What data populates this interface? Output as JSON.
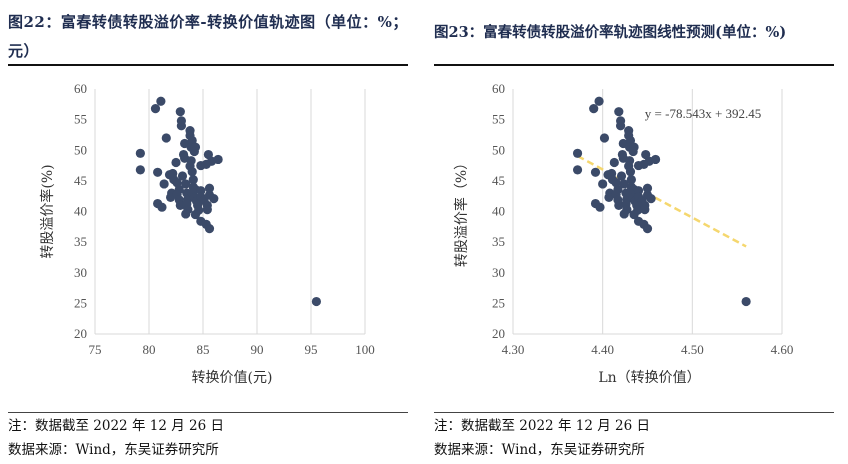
{
  "left": {
    "title": "图22：富春转债转股溢价率-转换价值轨迹图（单位：%；元）",
    "note": "注：数据截至 2022 年 12 月 26 日",
    "source": "数据来源：Wind，东吴证券研究所"
  },
  "right": {
    "title": "图23：富春转债转股溢价率轨迹图线性预测(单位：%)",
    "note": "注：数据截至 2022 年 12 月 26 日",
    "source": "数据来源：Wind，东吴证券研究所"
  },
  "colors": {
    "marker": "#3b4a68",
    "trend": "#f5d76e",
    "title": "#1f2d50"
  },
  "chart_data": [
    {
      "type": "scatter",
      "title": "图22：富春转债转股溢价率-转换价值轨迹图（单位：%；元）",
      "xlabel": "转换价值(元)",
      "ylabel": "转股溢价率(%)",
      "xlim": [
        75,
        100
      ],
      "ylim": [
        20,
        60
      ],
      "xticks": [
        75,
        80,
        85,
        90,
        95,
        100
      ],
      "yticks": [
        20,
        25,
        30,
        35,
        40,
        45,
        50,
        55,
        60
      ],
      "grid": "vertical",
      "points": [
        [
          79.2,
          49.5
        ],
        [
          79.2,
          46.8
        ],
        [
          80.6,
          56.8
        ],
        [
          81.1,
          58.0
        ],
        [
          81.6,
          52.0
        ],
        [
          80.8,
          46.4
        ],
        [
          80.8,
          41.3
        ],
        [
          81.2,
          40.7
        ],
        [
          81.4,
          44.5
        ],
        [
          81.9,
          46.0
        ],
        [
          82.3,
          45.2
        ],
        [
          82.1,
          43.0
        ],
        [
          82.0,
          42.3
        ],
        [
          82.2,
          46.2
        ],
        [
          82.5,
          48.0
        ],
        [
          82.6,
          44.7
        ],
        [
          82.8,
          43.6
        ],
        [
          82.6,
          42.8
        ],
        [
          82.8,
          41.9
        ],
        [
          82.9,
          41.0
        ],
        [
          83.1,
          45.8
        ],
        [
          83.2,
          49.3
        ],
        [
          83.3,
          51.1
        ],
        [
          83.0,
          54.0
        ],
        [
          83.0,
          54.8
        ],
        [
          82.9,
          56.3
        ],
        [
          83.3,
          48.7
        ],
        [
          83.4,
          44.5
        ],
        [
          83.5,
          43.0
        ],
        [
          83.6,
          42.0
        ],
        [
          83.5,
          41.2
        ],
        [
          83.6,
          40.3
        ],
        [
          83.4,
          39.6
        ],
        [
          83.8,
          53.2
        ],
        [
          83.8,
          52.4
        ],
        [
          84.0,
          51.6
        ],
        [
          83.9,
          50.5
        ],
        [
          84.3,
          50.5
        ],
        [
          84.2,
          49.8
        ],
        [
          83.9,
          48.3
        ],
        [
          83.8,
          47.4
        ],
        [
          84.0,
          46.5
        ],
        [
          84.1,
          45.2
        ],
        [
          84.1,
          44.0
        ],
        [
          84.3,
          43.6
        ],
        [
          84.0,
          43.0
        ],
        [
          84.2,
          42.3
        ],
        [
          84.4,
          41.7
        ],
        [
          84.5,
          41.0
        ],
        [
          84.6,
          40.2
        ],
        [
          84.3,
          39.5
        ],
        [
          84.8,
          47.5
        ],
        [
          84.8,
          43.4
        ],
        [
          84.8,
          42.4
        ],
        [
          85.1,
          41.8
        ],
        [
          85.4,
          41.0
        ],
        [
          85.4,
          40.3
        ],
        [
          85.6,
          42.7
        ],
        [
          85.6,
          43.8
        ],
        [
          85.5,
          49.3
        ],
        [
          85.8,
          48.2
        ],
        [
          85.3,
          47.7
        ],
        [
          84.8,
          38.4
        ],
        [
          85.3,
          37.9
        ],
        [
          85.6,
          37.2
        ],
        [
          86.0,
          42.1
        ],
        [
          86.4,
          48.5
        ],
        [
          95.5,
          25.3
        ]
      ]
    },
    {
      "type": "scatter",
      "title": "图23：富春转债转股溢价率轨迹图线性预测(单位：%)",
      "xlabel": "Ln（转换价值）",
      "ylabel": "转股溢价率（%）",
      "xlim": [
        4.3,
        4.6
      ],
      "ylim": [
        20,
        60
      ],
      "xticks": [
        4.3,
        4.4,
        4.5,
        4.6
      ],
      "yticks": [
        20,
        25,
        30,
        35,
        40,
        45,
        50,
        55,
        60
      ],
      "grid": "vertical",
      "trendline": {
        "label": "y = -78.543x + 392.45",
        "slope": -78.543,
        "intercept": 392.45,
        "x_range": [
          4.372,
          4.56
        ]
      },
      "points": [
        [
          4.372,
          49.5
        ],
        [
          4.372,
          46.8
        ],
        [
          4.39,
          56.8
        ],
        [
          4.396,
          58.0
        ],
        [
          4.402,
          52.0
        ],
        [
          4.392,
          46.4
        ],
        [
          4.392,
          41.3
        ],
        [
          4.397,
          40.7
        ],
        [
          4.4,
          44.5
        ],
        [
          4.406,
          46.0
        ],
        [
          4.411,
          45.2
        ],
        [
          4.408,
          43.0
        ],
        [
          4.407,
          42.3
        ],
        [
          4.41,
          46.2
        ],
        [
          4.413,
          48.0
        ],
        [
          4.415,
          44.7
        ],
        [
          4.417,
          43.6
        ],
        [
          4.415,
          42.8
        ],
        [
          4.417,
          41.9
        ],
        [
          4.418,
          41.0
        ],
        [
          4.421,
          45.8
        ],
        [
          4.422,
          49.3
        ],
        [
          4.423,
          51.1
        ],
        [
          4.42,
          54.0
        ],
        [
          4.42,
          54.8
        ],
        [
          4.418,
          56.3
        ],
        [
          4.423,
          48.7
        ],
        [
          4.424,
          44.5
        ],
        [
          4.426,
          43.0
        ],
        [
          4.427,
          42.0
        ],
        [
          4.426,
          41.2
        ],
        [
          4.427,
          40.3
        ],
        [
          4.424,
          39.6
        ],
        [
          4.429,
          53.2
        ],
        [
          4.429,
          52.4
        ],
        [
          4.431,
          51.6
        ],
        [
          4.43,
          50.5
        ],
        [
          4.435,
          50.5
        ],
        [
          4.434,
          49.8
        ],
        [
          4.43,
          48.3
        ],
        [
          4.429,
          47.4
        ],
        [
          4.431,
          46.5
        ],
        [
          4.432,
          45.2
        ],
        [
          4.432,
          44.0
        ],
        [
          4.435,
          43.6
        ],
        [
          4.431,
          43.0
        ],
        [
          4.434,
          42.3
        ],
        [
          4.436,
          41.7
        ],
        [
          4.438,
          41.0
        ],
        [
          4.439,
          40.2
        ],
        [
          4.435,
          39.5
        ],
        [
          4.44,
          47.5
        ],
        [
          4.44,
          43.4
        ],
        [
          4.44,
          42.4
        ],
        [
          4.444,
          41.8
        ],
        [
          4.447,
          41.0
        ],
        [
          4.447,
          40.3
        ],
        [
          4.45,
          42.7
        ],
        [
          4.45,
          43.8
        ],
        [
          4.448,
          49.3
        ],
        [
          4.452,
          48.2
        ],
        [
          4.446,
          47.7
        ],
        [
          4.44,
          38.4
        ],
        [
          4.446,
          37.9
        ],
        [
          4.45,
          37.2
        ],
        [
          4.454,
          42.1
        ],
        [
          4.459,
          48.5
        ],
        [
          4.56,
          25.3
        ]
      ]
    }
  ]
}
